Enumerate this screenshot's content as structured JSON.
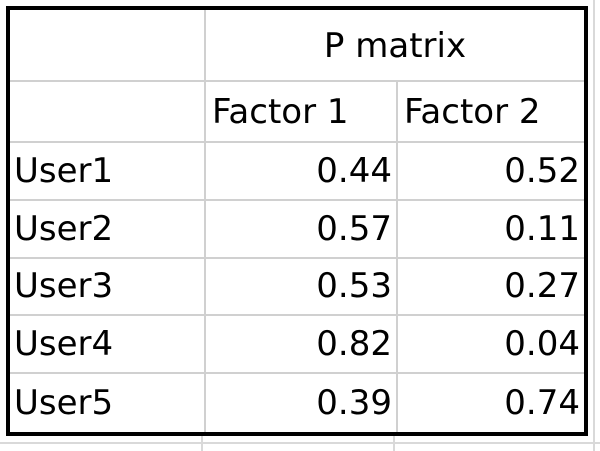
{
  "sheet": {
    "title": "P matrix",
    "columns": [
      "Factor 1",
      "Factor 2"
    ],
    "rows": [
      {
        "label": "User1",
        "values": [
          "0.44",
          "0.52"
        ]
      },
      {
        "label": "User2",
        "values": [
          "0.57",
          "0.11"
        ]
      },
      {
        "label": "User3",
        "values": [
          "0.53",
          "0.27"
        ]
      },
      {
        "label": "User4",
        "values": [
          "0.82",
          "0.04"
        ]
      },
      {
        "label": "User5",
        "values": [
          "0.39",
          "0.74"
        ]
      }
    ]
  },
  "colors": {
    "border": "#000000",
    "gridline": "#d0d0d0",
    "text": "#000000",
    "background": "#ffffff"
  }
}
